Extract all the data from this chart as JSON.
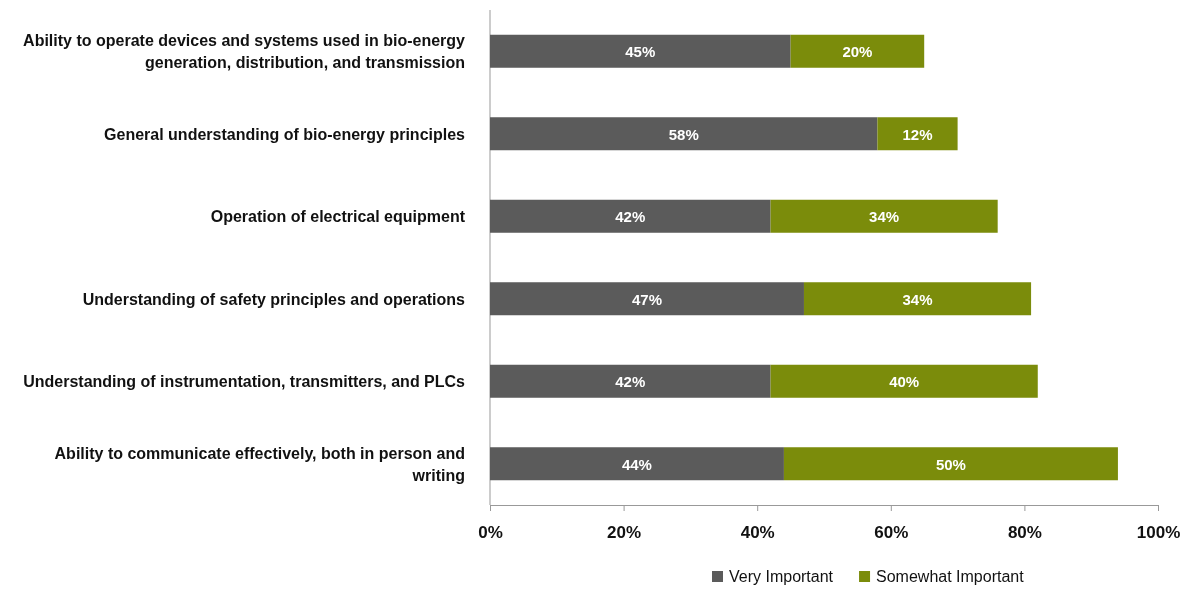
{
  "chart_data": {
    "type": "bar",
    "orientation": "horizontal",
    "stacked": true,
    "categories": [
      "Ability to operate devices and systems used in bio-energy generation, distribution, and transmission",
      "General understanding of bio-energy principles",
      "Operation of electrical equipment",
      "Understanding of safety principles and operations",
      "Understanding of instrumentation, transmitters, and PLCs",
      "Ability to communicate effectively, both in person and writing"
    ],
    "series": [
      {
        "name": "Very Important",
        "color": "#5b5b5b",
        "values": [
          45,
          58,
          42,
          47,
          42,
          44
        ],
        "value_labels": [
          "45%",
          "58%",
          "42%",
          "47%",
          "42%",
          "44%"
        ]
      },
      {
        "name": "Somewhat Important",
        "color": "#7b8c0b",
        "values": [
          20,
          12,
          34,
          34,
          40,
          50
        ],
        "value_labels": [
          "20%",
          "12%",
          "34%",
          "34%",
          "40%",
          "50%"
        ]
      }
    ],
    "xlim": [
      0,
      100
    ],
    "xticks": [
      {
        "value": 0,
        "label": "0%"
      },
      {
        "value": 20,
        "label": "20%"
      },
      {
        "value": 40,
        "label": "40%"
      },
      {
        "value": 60,
        "label": "60%"
      },
      {
        "value": 80,
        "label": "80%"
      },
      {
        "value": 100,
        "label": "100%"
      }
    ],
    "grid": false,
    "legend": "bottom right"
  }
}
